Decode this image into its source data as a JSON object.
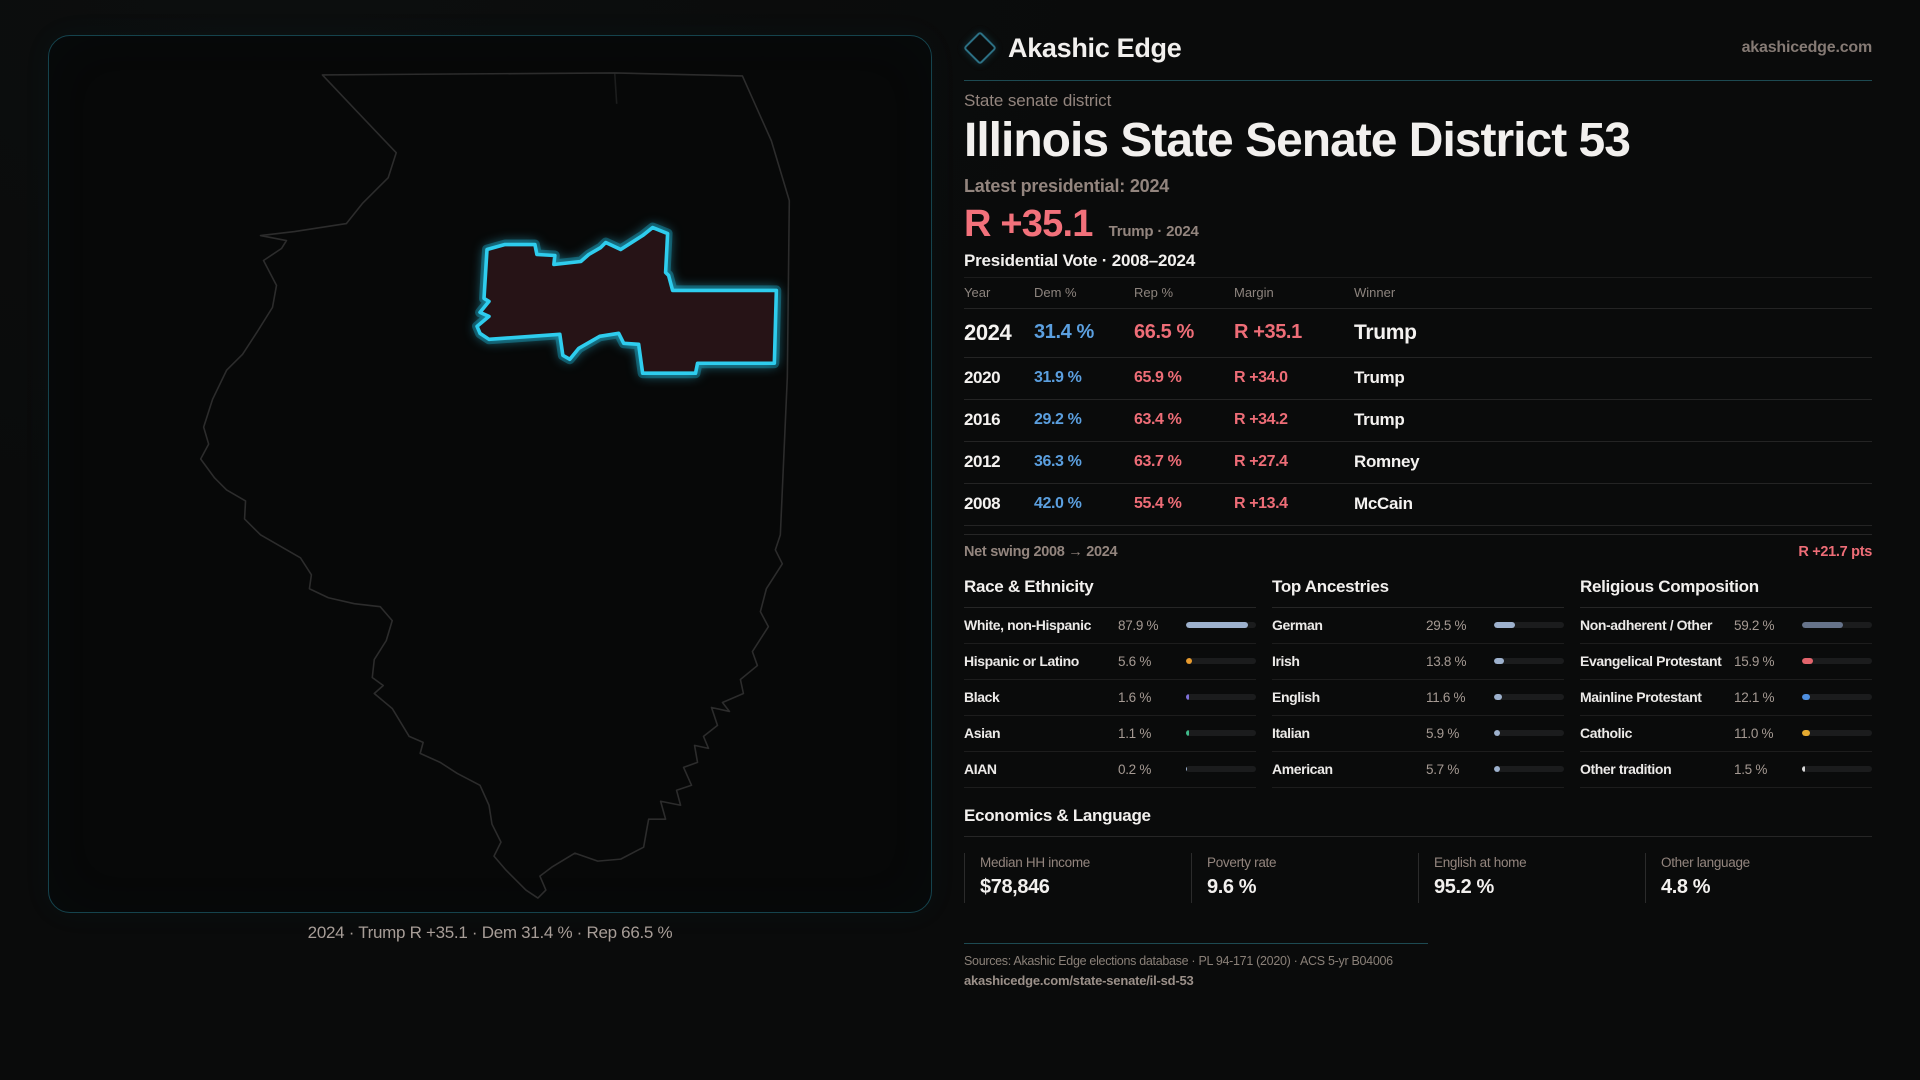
{
  "brand": {
    "name": "Akashic Edge",
    "domain": "akashicedge.com"
  },
  "colors": {
    "accent_cyan": "#2ecdee",
    "dem_blue": "#5b9fdf",
    "rep_red": "#ee6d77",
    "margin_red": "#f2717b",
    "muted_text": "#93857e",
    "panel_border_teal": "#15434d",
    "district_fill": "#261316",
    "state_outline": "#2c2c2c"
  },
  "map": {
    "caption": "2024 · Trump R +35.1 · Dem 31.4 % · Rep 66.5 %"
  },
  "header": {
    "kicker": "State senate district",
    "title": "Illinois State Senate District 53",
    "latest_label": "Latest presidential: 2024",
    "margin_value": "R +35.1",
    "margin_sub": "Trump · 2024"
  },
  "table": {
    "title": "Presidential Vote · 2008–2024",
    "columns": {
      "year": "Year",
      "dem": "Dem %",
      "rep": "Rep %",
      "margin": "Margin",
      "winner": "Winner"
    },
    "rows": [
      {
        "year": "2024",
        "dem": "31.4 %",
        "rep": "66.5 %",
        "margin": "R +35.1",
        "winner": "Trump"
      },
      {
        "year": "2020",
        "dem": "31.9 %",
        "rep": "65.9 %",
        "margin": "R +34.0",
        "winner": "Trump"
      },
      {
        "year": "2016",
        "dem": "29.2 %",
        "rep": "63.4 %",
        "margin": "R +34.2",
        "winner": "Trump"
      },
      {
        "year": "2012",
        "dem": "36.3 %",
        "rep": "63.7 %",
        "margin": "R +27.4",
        "winner": "Romney"
      },
      {
        "year": "2008",
        "dem": "42.0 %",
        "rep": "55.4 %",
        "margin": "R +13.4",
        "winner": "McCain"
      }
    ],
    "net_swing_label": "Net swing 2008 → 2024",
    "net_swing_value": "R +21.7 pts"
  },
  "demographics": {
    "race": {
      "title": "Race & Ethnicity",
      "rows": [
        {
          "label": "White, non-Hispanic",
          "value": "87.9 %",
          "pct": 87.9,
          "color": "#9db1cd"
        },
        {
          "label": "Hispanic or Latino",
          "value": "5.6 %",
          "pct": 5.6,
          "color": "#e89b2e"
        },
        {
          "label": "Black",
          "value": "1.6 %",
          "pct": 1.6,
          "color": "#7f70d8"
        },
        {
          "label": "Asian",
          "value": "1.1 %",
          "pct": 1.1,
          "color": "#3fba8a"
        },
        {
          "label": "AIAN",
          "value": "0.2 %",
          "pct": 0.2,
          "color": "#9db1cd"
        }
      ]
    },
    "ancestries": {
      "title": "Top Ancestries",
      "rows": [
        {
          "label": "German",
          "value": "29.5 %",
          "pct": 29.5,
          "color": "#9db1cd"
        },
        {
          "label": "Irish",
          "value": "13.8 %",
          "pct": 13.8,
          "color": "#9db1cd"
        },
        {
          "label": "English",
          "value": "11.6 %",
          "pct": 11.6,
          "color": "#9db1cd"
        },
        {
          "label": "Italian",
          "value": "5.9 %",
          "pct": 5.9,
          "color": "#9db1cd"
        },
        {
          "label": "American",
          "value": "5.7 %",
          "pct": 5.7,
          "color": "#9db1cd"
        }
      ]
    },
    "religion": {
      "title": "Religious Composition",
      "rows": [
        {
          "label": "Non-adherent / Other",
          "value": "59.2 %",
          "pct": 59.2,
          "color": "#66738a"
        },
        {
          "label": "Evangelical Protestant",
          "value": "15.9 %",
          "pct": 15.9,
          "color": "#e2646c"
        },
        {
          "label": "Mainline Protestant",
          "value": "12.1 %",
          "pct": 12.1,
          "color": "#4e8fe0"
        },
        {
          "label": "Catholic",
          "value": "11.0 %",
          "pct": 11.0,
          "color": "#e5aa30"
        },
        {
          "label": "Other tradition",
          "value": "1.5 %",
          "pct": 1.5,
          "color": "#d8d8d8"
        }
      ]
    }
  },
  "economics": {
    "title": "Economics & Language",
    "stats": [
      {
        "label": "Median HH income",
        "value": "$78,846"
      },
      {
        "label": "Poverty rate",
        "value": "9.6 %"
      },
      {
        "label": "English at home",
        "value": "95.2 %"
      },
      {
        "label": "Other language",
        "value": "4.8 %"
      }
    ]
  },
  "footer": {
    "sources": "Sources: Akashic Edge elections database · PL 94-171 (2020) · ACS 5-yr B04006",
    "permalink": "akashicedge.com/state-senate/il-sd-53"
  }
}
